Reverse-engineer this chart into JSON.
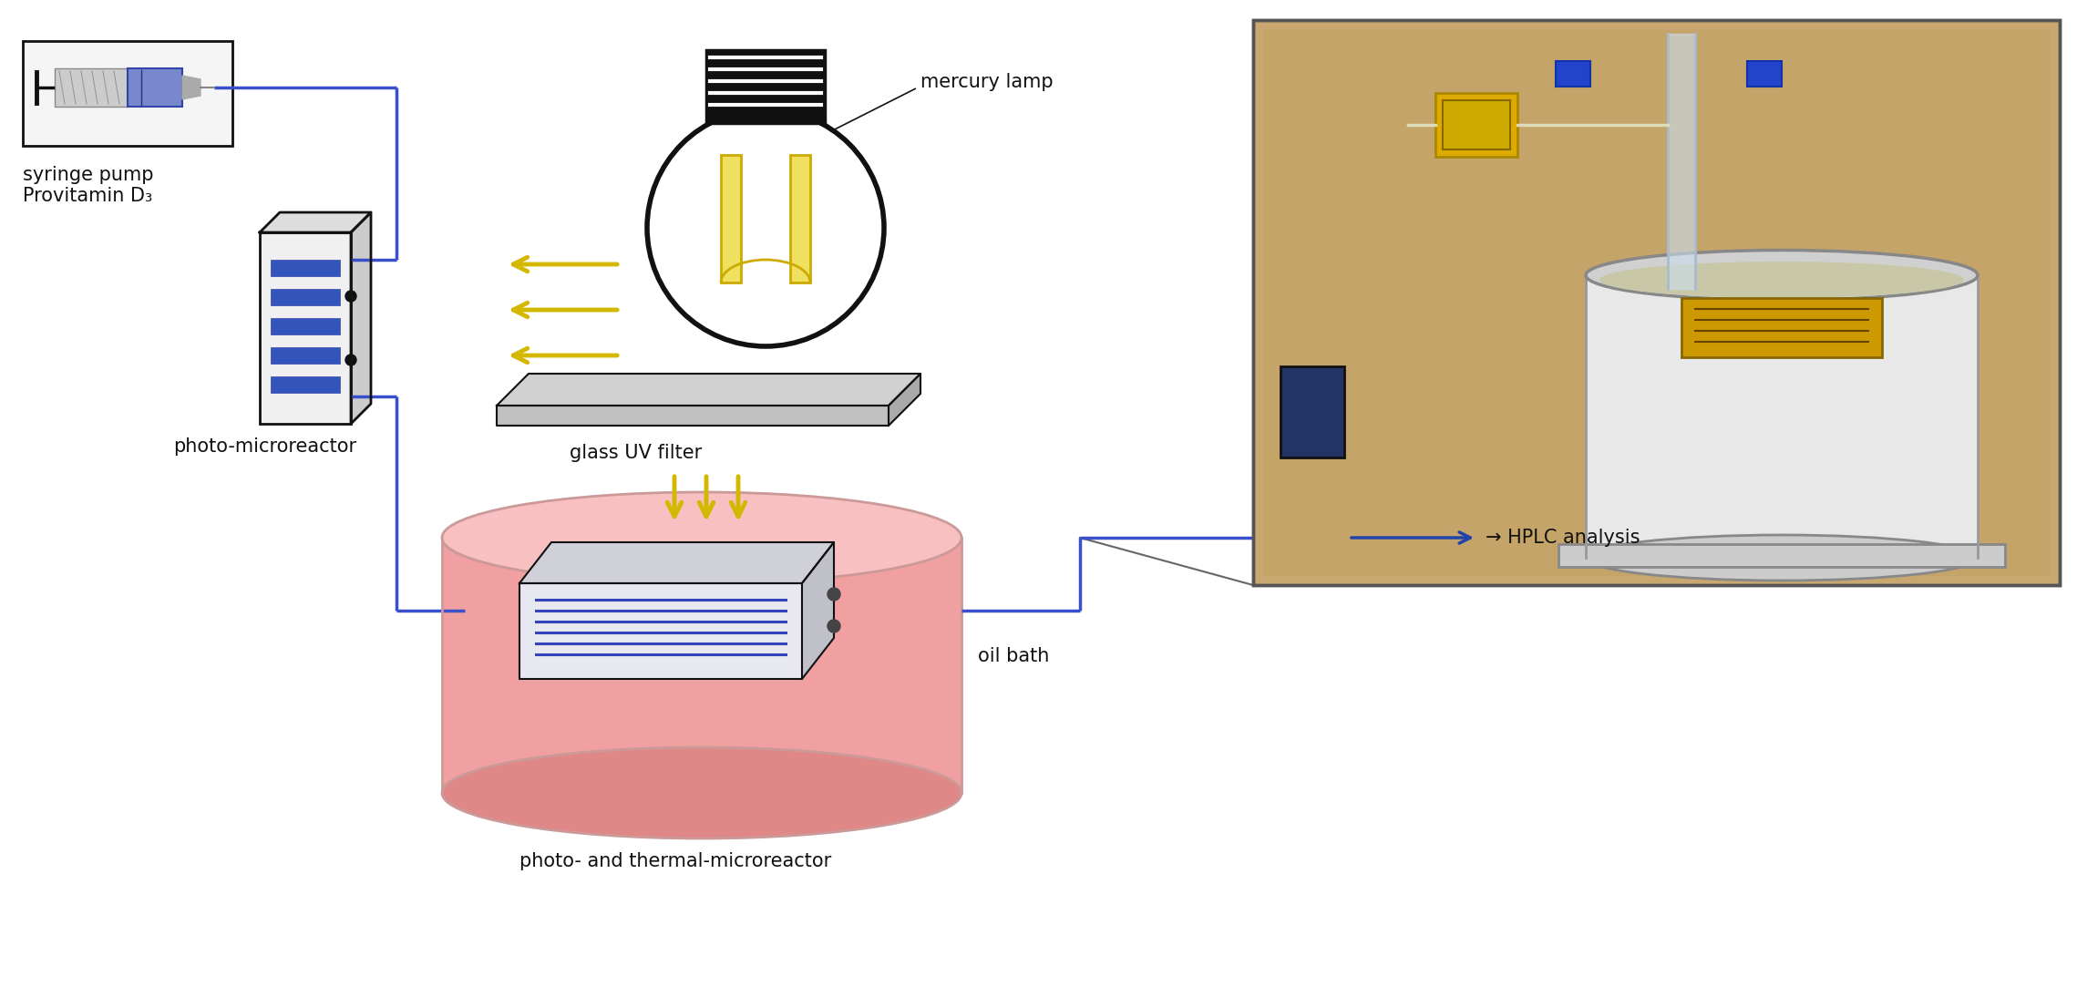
{
  "background_color": "#ffffff",
  "labels": {
    "syringe_pump": "syringe pump\nProvitamin D₃",
    "photo_microreactor": "photo-microreactor",
    "mercury_lamp": "mercury lamp",
    "glass_uv_filter": "glass UV filter",
    "oil_bath": "oil bath",
    "photo_thermal": "photo- and thermal-microreactor",
    "hplc": "→ HPLC analysis"
  },
  "colors": {
    "blue_flow": "#3a4fcc",
    "yellow_arrow": "#d4b800",
    "pink_bath": "#f0a0a0",
    "dark_pink": "#e08888",
    "black": "#111111",
    "blue_syringe": "#3344aa",
    "light_blue_syringe": "#7788cc",
    "photo_box_blue": "#3355bb",
    "arrow_blue": "#2244aa",
    "lamp_yellow": "#e8c800",
    "lamp_inner": "#f0e060"
  },
  "figsize": [
    22.79,
    10.83
  ],
  "dpi": 100
}
